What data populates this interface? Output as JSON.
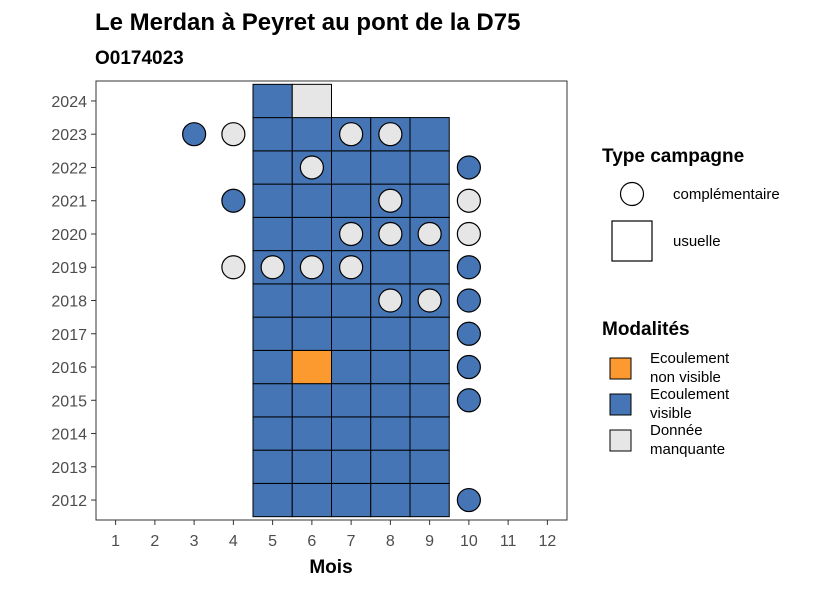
{
  "chart_data": {
    "type": "heatmap",
    "title": "Le Merdan à Peyret au pont de la D75",
    "subtitle": "O0174023",
    "xlabel": "Mois",
    "ylabel": "",
    "x_ticks": [
      "1",
      "2",
      "3",
      "4",
      "5",
      "6",
      "7",
      "8",
      "9",
      "10",
      "11",
      "12"
    ],
    "y_ticks": [
      "2012",
      "2013",
      "2014",
      "2015",
      "2016",
      "2017",
      "2018",
      "2019",
      "2020",
      "2021",
      "2022",
      "2023",
      "2024"
    ],
    "xlim": [
      0.5,
      12.5
    ],
    "ylim": [
      2011.4,
      2024.6
    ],
    "grid": false,
    "colors": {
      "ecoulement_non_visible": "#fd9a2f",
      "ecoulement_visible": "#4575b4",
      "donnee_manquante": "#e6e6e6"
    },
    "usuelle": [
      {
        "year": 2012,
        "month": 5,
        "modalite": "ecoulement_visible"
      },
      {
        "year": 2012,
        "month": 6,
        "modalite": "ecoulement_visible"
      },
      {
        "year": 2012,
        "month": 7,
        "modalite": "ecoulement_visible"
      },
      {
        "year": 2012,
        "month": 8,
        "modalite": "ecoulement_visible"
      },
      {
        "year": 2012,
        "month": 9,
        "modalite": "ecoulement_visible"
      },
      {
        "year": 2013,
        "month": 5,
        "modalite": "ecoulement_visible"
      },
      {
        "year": 2013,
        "month": 6,
        "modalite": "ecoulement_visible"
      },
      {
        "year": 2013,
        "month": 7,
        "modalite": "ecoulement_visible"
      },
      {
        "year": 2013,
        "month": 8,
        "modalite": "ecoulement_visible"
      },
      {
        "year": 2013,
        "month": 9,
        "modalite": "ecoulement_visible"
      },
      {
        "year": 2014,
        "month": 5,
        "modalite": "ecoulement_visible"
      },
      {
        "year": 2014,
        "month": 6,
        "modalite": "ecoulement_visible"
      },
      {
        "year": 2014,
        "month": 7,
        "modalite": "ecoulement_visible"
      },
      {
        "year": 2014,
        "month": 8,
        "modalite": "ecoulement_visible"
      },
      {
        "year": 2014,
        "month": 9,
        "modalite": "ecoulement_visible"
      },
      {
        "year": 2015,
        "month": 5,
        "modalite": "ecoulement_visible"
      },
      {
        "year": 2015,
        "month": 6,
        "modalite": "ecoulement_visible"
      },
      {
        "year": 2015,
        "month": 7,
        "modalite": "ecoulement_visible"
      },
      {
        "year": 2015,
        "month": 8,
        "modalite": "ecoulement_visible"
      },
      {
        "year": 2015,
        "month": 9,
        "modalite": "ecoulement_visible"
      },
      {
        "year": 2016,
        "month": 5,
        "modalite": "ecoulement_visible"
      },
      {
        "year": 2016,
        "month": 6,
        "modalite": "ecoulement_non_visible"
      },
      {
        "year": 2016,
        "month": 7,
        "modalite": "ecoulement_visible"
      },
      {
        "year": 2016,
        "month": 8,
        "modalite": "ecoulement_visible"
      },
      {
        "year": 2016,
        "month": 9,
        "modalite": "ecoulement_visible"
      },
      {
        "year": 2017,
        "month": 5,
        "modalite": "ecoulement_visible"
      },
      {
        "year": 2017,
        "month": 6,
        "modalite": "ecoulement_visible"
      },
      {
        "year": 2017,
        "month": 7,
        "modalite": "ecoulement_visible"
      },
      {
        "year": 2017,
        "month": 8,
        "modalite": "ecoulement_visible"
      },
      {
        "year": 2017,
        "month": 9,
        "modalite": "ecoulement_visible"
      },
      {
        "year": 2018,
        "month": 5,
        "modalite": "ecoulement_visible"
      },
      {
        "year": 2018,
        "month": 6,
        "modalite": "ecoulement_visible"
      },
      {
        "year": 2018,
        "month": 7,
        "modalite": "ecoulement_visible"
      },
      {
        "year": 2018,
        "month": 8,
        "modalite": "ecoulement_visible"
      },
      {
        "year": 2018,
        "month": 9,
        "modalite": "ecoulement_visible"
      },
      {
        "year": 2019,
        "month": 5,
        "modalite": "ecoulement_visible"
      },
      {
        "year": 2019,
        "month": 6,
        "modalite": "ecoulement_visible"
      },
      {
        "year": 2019,
        "month": 7,
        "modalite": "ecoulement_visible"
      },
      {
        "year": 2019,
        "month": 8,
        "modalite": "ecoulement_visible"
      },
      {
        "year": 2019,
        "month": 9,
        "modalite": "ecoulement_visible"
      },
      {
        "year": 2020,
        "month": 5,
        "modalite": "ecoulement_visible"
      },
      {
        "year": 2020,
        "month": 6,
        "modalite": "ecoulement_visible"
      },
      {
        "year": 2020,
        "month": 7,
        "modalite": "ecoulement_visible"
      },
      {
        "year": 2020,
        "month": 8,
        "modalite": "ecoulement_visible"
      },
      {
        "year": 2020,
        "month": 9,
        "modalite": "ecoulement_visible"
      },
      {
        "year": 2021,
        "month": 5,
        "modalite": "ecoulement_visible"
      },
      {
        "year": 2021,
        "month": 6,
        "modalite": "ecoulement_visible"
      },
      {
        "year": 2021,
        "month": 7,
        "modalite": "ecoulement_visible"
      },
      {
        "year": 2021,
        "month": 8,
        "modalite": "ecoulement_visible"
      },
      {
        "year": 2021,
        "month": 9,
        "modalite": "ecoulement_visible"
      },
      {
        "year": 2022,
        "month": 5,
        "modalite": "ecoulement_visible"
      },
      {
        "year": 2022,
        "month": 6,
        "modalite": "ecoulement_visible"
      },
      {
        "year": 2022,
        "month": 7,
        "modalite": "ecoulement_visible"
      },
      {
        "year": 2022,
        "month": 8,
        "modalite": "ecoulement_visible"
      },
      {
        "year": 2022,
        "month": 9,
        "modalite": "ecoulement_visible"
      },
      {
        "year": 2023,
        "month": 5,
        "modalite": "ecoulement_visible"
      },
      {
        "year": 2023,
        "month": 6,
        "modalite": "ecoulement_visible"
      },
      {
        "year": 2023,
        "month": 7,
        "modalite": "ecoulement_visible"
      },
      {
        "year": 2023,
        "month": 8,
        "modalite": "ecoulement_visible"
      },
      {
        "year": 2023,
        "month": 9,
        "modalite": "ecoulement_visible"
      },
      {
        "year": 2024,
        "month": 5,
        "modalite": "ecoulement_visible"
      },
      {
        "year": 2024,
        "month": 6,
        "modalite": "donnee_manquante"
      }
    ],
    "complementaire": [
      {
        "year": 2023,
        "month": 3,
        "modalite": "ecoulement_visible"
      },
      {
        "year": 2023,
        "month": 4,
        "modalite": "donnee_manquante"
      },
      {
        "year": 2023,
        "month": 7,
        "modalite": "donnee_manquante"
      },
      {
        "year": 2023,
        "month": 8,
        "modalite": "donnee_manquante"
      },
      {
        "year": 2022,
        "month": 6,
        "modalite": "donnee_manquante"
      },
      {
        "year": 2022,
        "month": 10,
        "modalite": "ecoulement_visible"
      },
      {
        "year": 2021,
        "month": 4,
        "modalite": "ecoulement_visible"
      },
      {
        "year": 2021,
        "month": 8,
        "modalite": "donnee_manquante"
      },
      {
        "year": 2021,
        "month": 10,
        "modalite": "donnee_manquante"
      },
      {
        "year": 2020,
        "month": 7,
        "modalite": "donnee_manquante"
      },
      {
        "year": 2020,
        "month": 8,
        "modalite": "donnee_manquante"
      },
      {
        "year": 2020,
        "month": 9,
        "modalite": "donnee_manquante"
      },
      {
        "year": 2020,
        "month": 10,
        "modalite": "donnee_manquante"
      },
      {
        "year": 2019,
        "month": 4,
        "modalite": "donnee_manquante"
      },
      {
        "year": 2019,
        "month": 5,
        "modalite": "donnee_manquante"
      },
      {
        "year": 2019,
        "month": 6,
        "modalite": "donnee_manquante"
      },
      {
        "year": 2019,
        "month": 7,
        "modalite": "donnee_manquante"
      },
      {
        "year": 2019,
        "month": 10,
        "modalite": "ecoulement_visible"
      },
      {
        "year": 2018,
        "month": 8,
        "modalite": "donnee_manquante"
      },
      {
        "year": 2018,
        "month": 9,
        "modalite": "donnee_manquante"
      },
      {
        "year": 2018,
        "month": 10,
        "modalite": "ecoulement_visible"
      },
      {
        "year": 2017,
        "month": 10,
        "modalite": "ecoulement_visible"
      },
      {
        "year": 2016,
        "month": 10,
        "modalite": "ecoulement_visible"
      },
      {
        "year": 2015,
        "month": 10,
        "modalite": "ecoulement_visible"
      },
      {
        "year": 2012,
        "month": 10,
        "modalite": "ecoulement_visible"
      }
    ],
    "legend": {
      "placement": "right",
      "type_title": "Type campagne",
      "type_items": [
        {
          "key": "complementaire",
          "label": "complémentaire"
        },
        {
          "key": "usuelle",
          "label": "usuelle"
        }
      ],
      "modalite_title": "Modalités",
      "modalite_items": [
        {
          "key": "ecoulement_non_visible",
          "label_lines": [
            "Ecoulement",
            "non visible"
          ]
        },
        {
          "key": "ecoulement_visible",
          "label_lines": [
            "Ecoulement",
            "visible"
          ]
        },
        {
          "key": "donnee_manquante",
          "label_lines": [
            "Donnée",
            "manquante"
          ]
        }
      ]
    }
  }
}
